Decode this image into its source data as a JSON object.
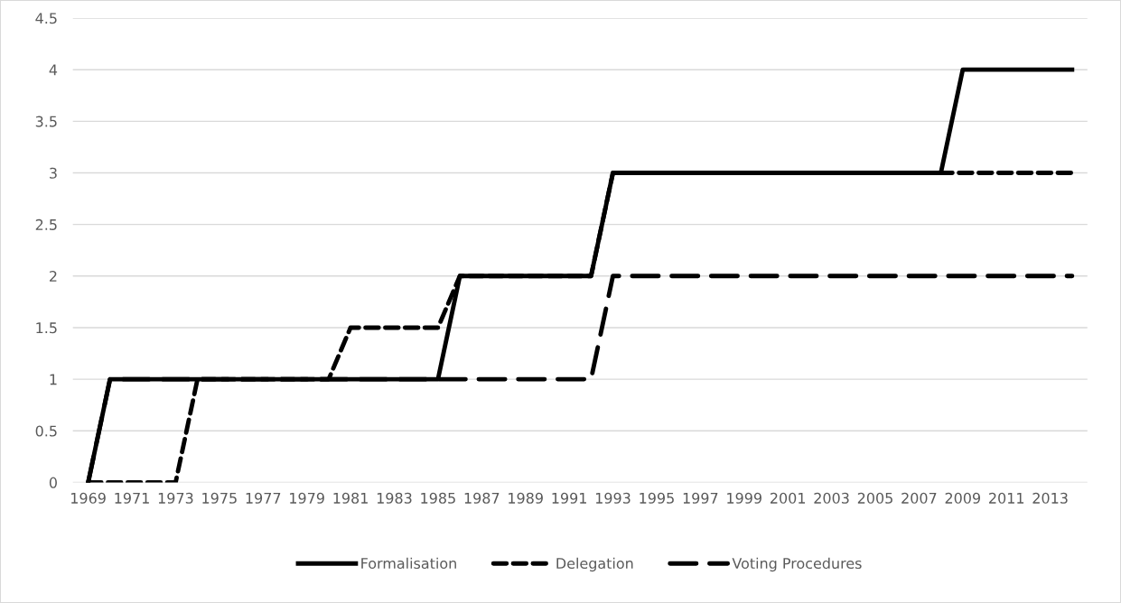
{
  "chart_data": {
    "type": "line",
    "categories": [
      "1969",
      null,
      "1971",
      null,
      "1973",
      null,
      "1975",
      null,
      "1977",
      null,
      "1979",
      null,
      "1981",
      null,
      "1983",
      null,
      "1985",
      null,
      "1987",
      null,
      "1989",
      null,
      "1991",
      null,
      "1993",
      null,
      "1995",
      null,
      "1997",
      null,
      "1999",
      null,
      "2001",
      null,
      "2003",
      null,
      "2005",
      null,
      "2007",
      null,
      "2009",
      null,
      "2011",
      null,
      "2013",
      null
    ],
    "series": [
      {
        "name": "Formalisation",
        "color": "#000000",
        "line_style": "solid",
        "values": [
          0,
          1,
          1,
          1,
          1,
          1,
          1,
          1,
          1,
          1,
          1,
          1,
          1,
          1,
          1,
          1,
          1,
          2,
          2,
          2,
          2,
          2,
          2,
          2,
          3,
          3,
          3,
          3,
          3,
          3,
          3,
          3,
          3,
          3,
          3,
          3,
          3,
          3,
          3,
          3,
          4,
          4,
          4,
          4,
          4,
          4
        ]
      },
      {
        "name": "Delegation",
        "color": "#000000",
        "line_style": "dashed",
        "values": [
          0,
          0,
          0,
          0,
          0,
          1,
          1,
          1,
          1,
          1,
          1,
          1,
          1.5,
          1.5,
          1.5,
          1.5,
          1.5,
          2,
          2,
          2,
          2,
          2,
          2,
          2,
          3,
          3,
          3,
          3,
          3,
          3,
          3,
          3,
          3,
          3,
          3,
          3,
          3,
          3,
          3,
          3,
          3,
          3,
          3,
          3,
          3,
          3
        ]
      },
      {
        "name": "Voting Procedures",
        "color": "#000000",
        "line_style": "long dashed",
        "values": [
          0,
          1,
          1,
          1,
          1,
          1,
          1,
          1,
          1,
          1,
          1,
          1,
          1,
          1,
          1,
          1,
          1,
          1,
          1,
          1,
          1,
          1,
          1,
          1,
          2,
          2,
          2,
          2,
          2,
          2,
          2,
          2,
          2,
          2,
          2,
          2,
          2,
          2,
          2,
          2,
          2,
          2,
          2,
          2,
          2,
          2
        ]
      }
    ],
    "ylim": [
      0,
      4.5
    ],
    "yticks": [
      0,
      0.5,
      1,
      1.5,
      2,
      2.5,
      3,
      3.5,
      4,
      4.5
    ],
    "grid": "y",
    "legend": "bottom",
    "marker": "none"
  }
}
